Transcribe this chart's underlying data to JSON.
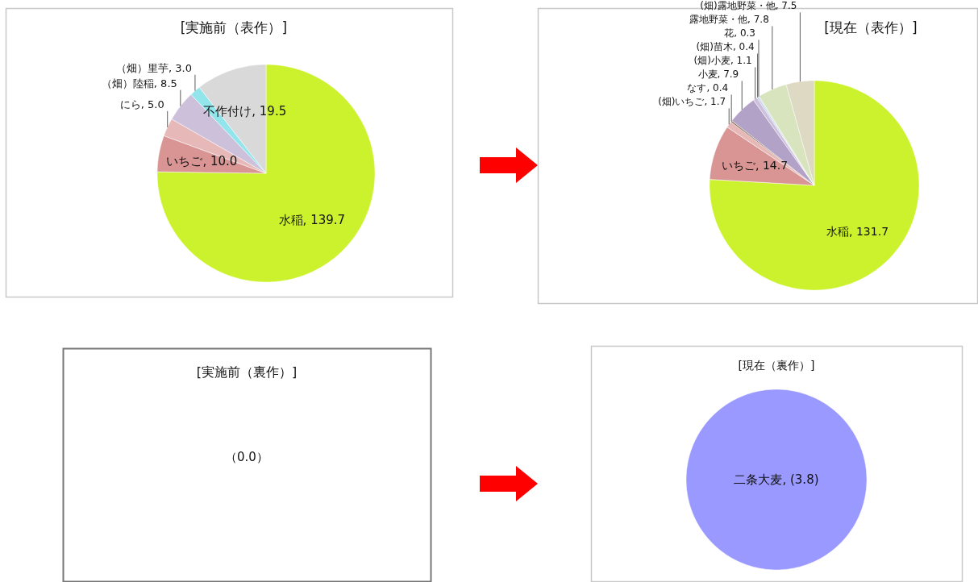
{
  "chart_data": [
    {
      "type": "pie",
      "title": "[実施前（表作）]",
      "categories": [
        "水稲",
        "いちご",
        "にら",
        "（畑）陸稲",
        "（畑）里芋",
        "不作付け"
      ],
      "values": [
        139.7,
        10.0,
        5.0,
        8.5,
        3.0,
        19.5
      ],
      "value_labels": [
        "139.7",
        "10.0",
        "5.0",
        "8.5",
        "3.0",
        "19.5"
      ],
      "colors": [
        "#ccf22e",
        "#d99594",
        "#e6b9b8",
        "#ccc0da",
        "#93e5ec",
        "#d9d9d9"
      ]
    },
    {
      "type": "pie",
      "title": "[現在（表作）]",
      "categories": [
        "水稲",
        "いちご",
        "(畑)いちご",
        "なす",
        "小麦",
        "(畑)小麦",
        "(畑)苗木",
        "花",
        "露地野菜・他",
        "(畑)露地野菜・他"
      ],
      "values": [
        131.7,
        14.7,
        1.7,
        0.4,
        7.9,
        1.1,
        0.4,
        0.3,
        7.8,
        7.5
      ],
      "value_labels": [
        "131.7",
        "14.7",
        "1.7",
        "0.4",
        "7.9",
        "1.1",
        "0.4",
        "0.3",
        "7.8",
        "7.5"
      ],
      "colors": [
        "#ccf22e",
        "#d99594",
        "#e6b9b8",
        "#8b6b4b",
        "#b3a2c7",
        "#ccc0da",
        "#c5c5e8",
        "#b7dee8",
        "#d7e4bd",
        "#ddd9c3"
      ]
    },
    {
      "type": "other",
      "title": "[実施前（裏作）]",
      "annotations": [
        "（0.0）"
      ]
    },
    {
      "type": "pie",
      "title": "[現在（裏作）]",
      "categories": [
        "二条大麦"
      ],
      "values": [
        3.8
      ],
      "value_labels": [
        "(3.8)"
      ],
      "colors": [
        "#9999ff"
      ]
    }
  ]
}
